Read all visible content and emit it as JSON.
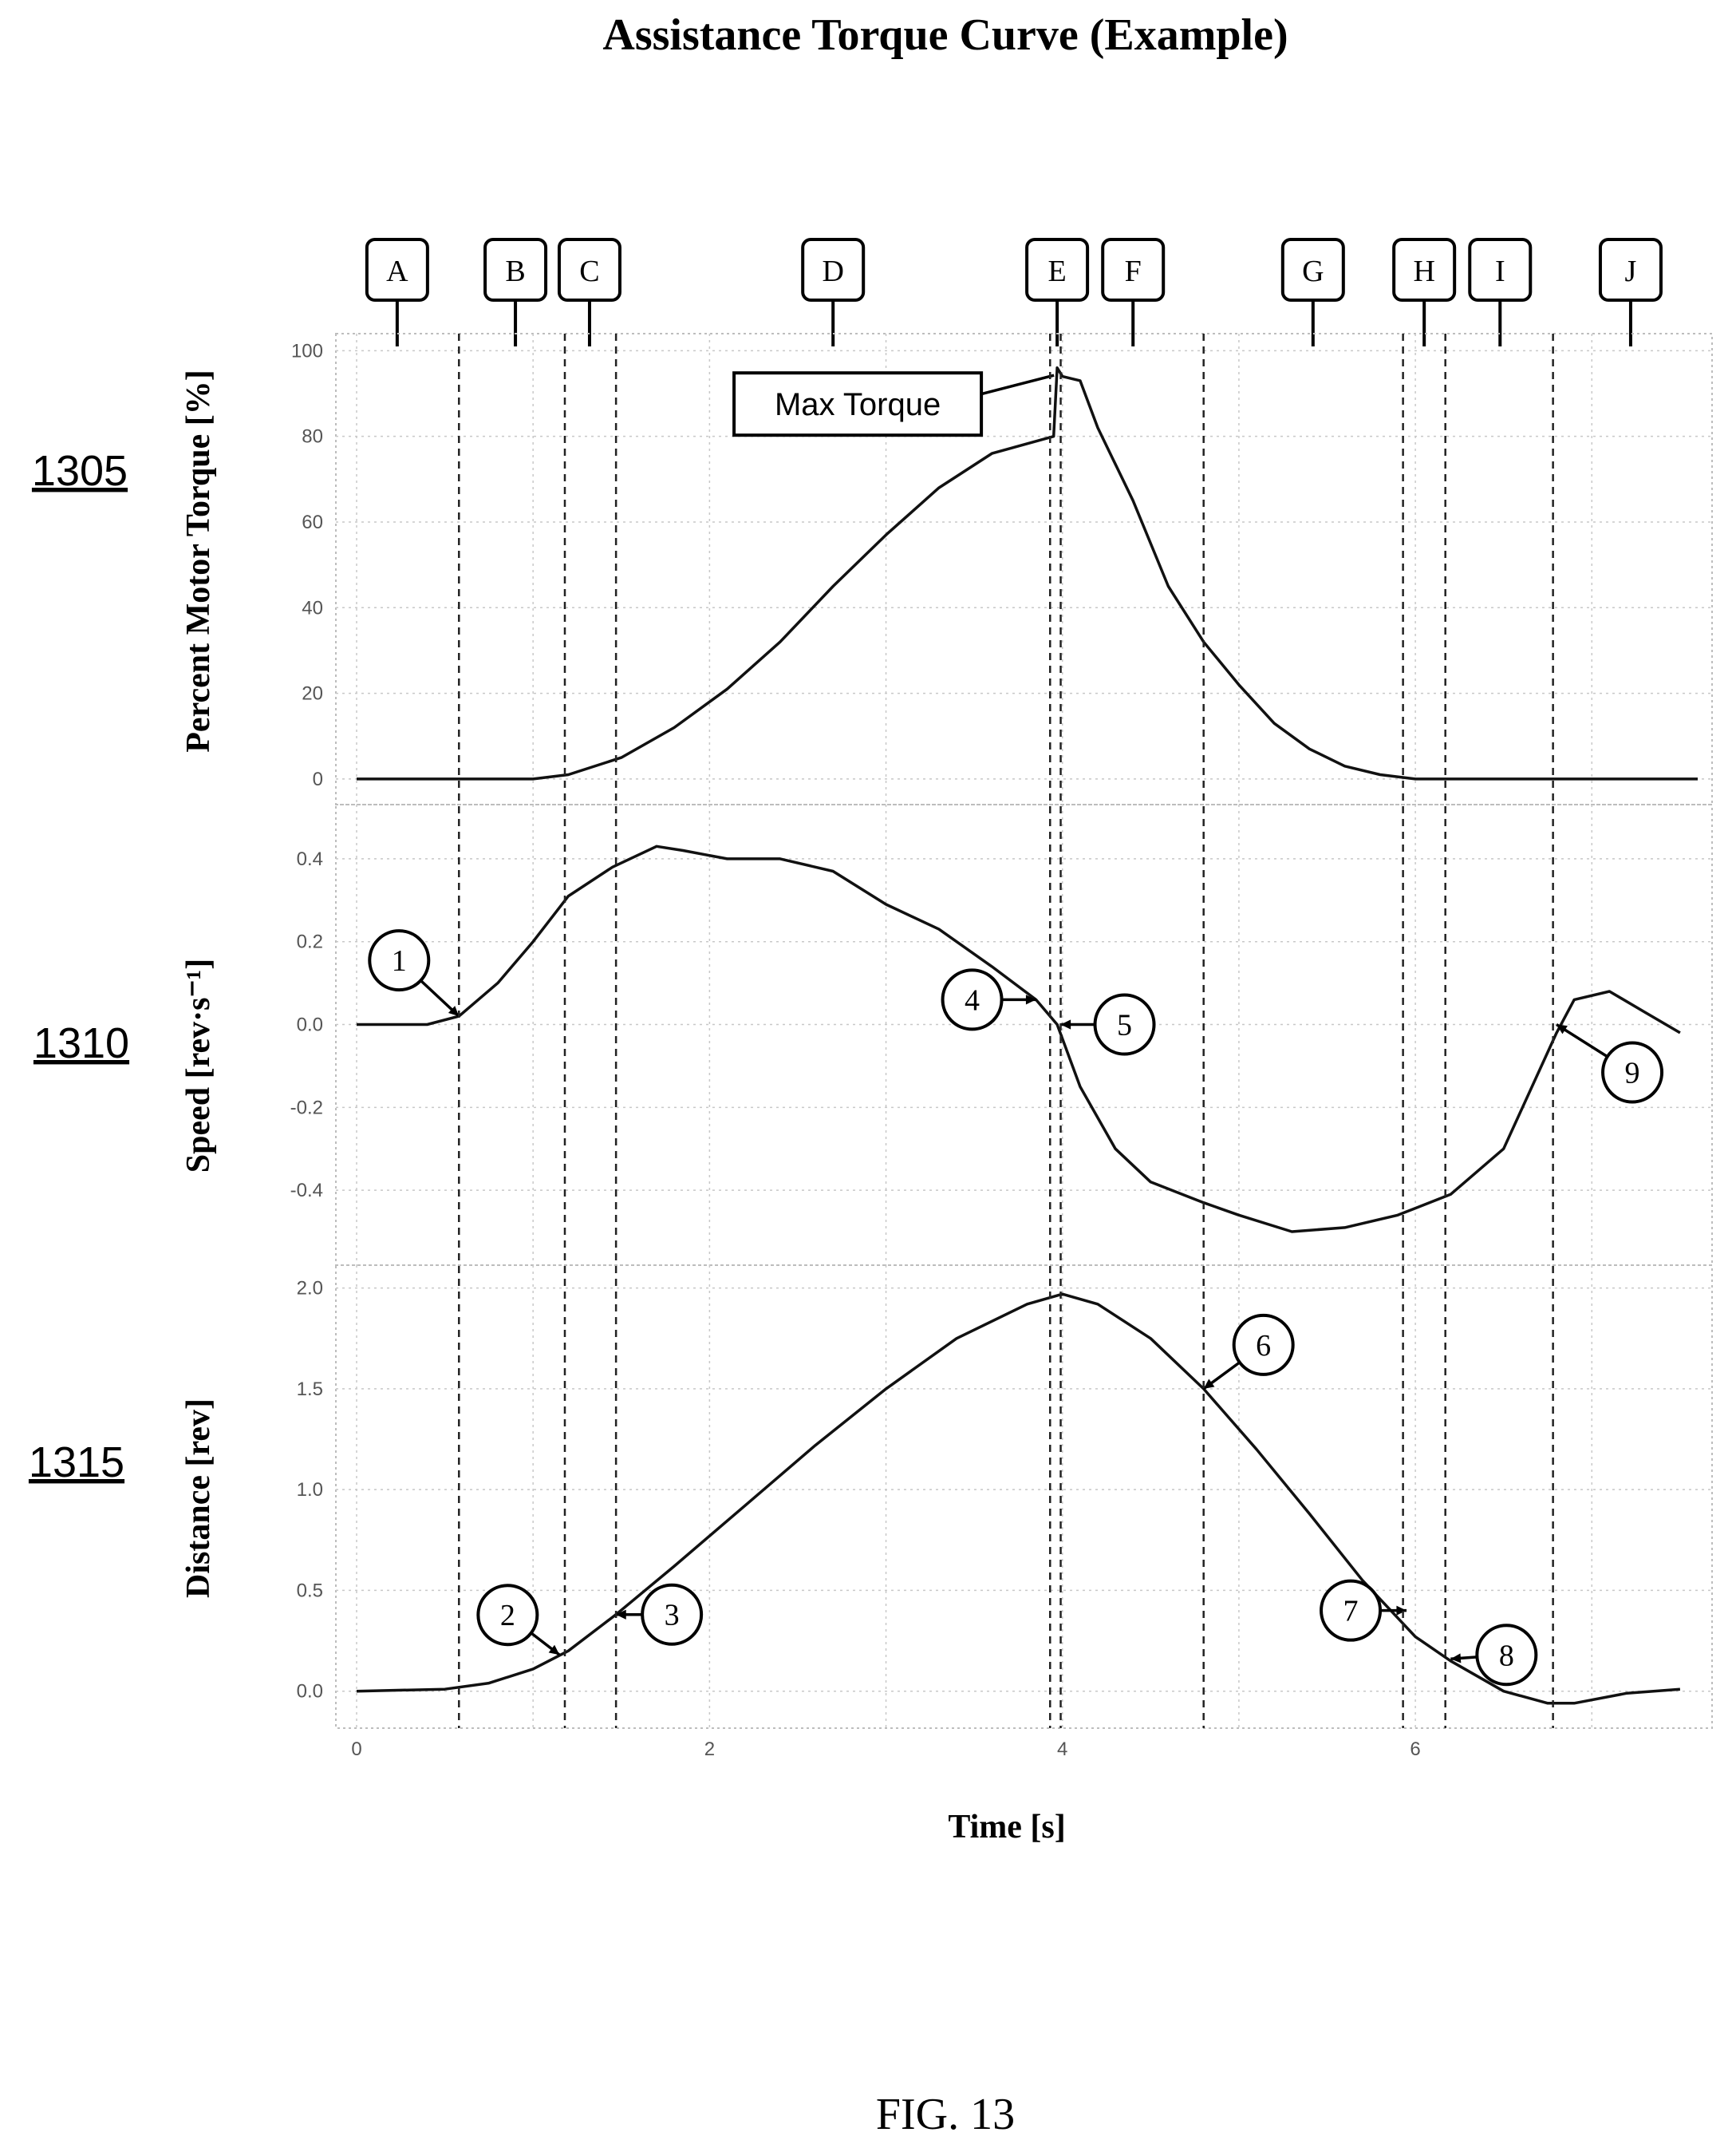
{
  "title": "Assistance Torque Curve (Example)",
  "figure_caption": "FIG. 13",
  "chart_data": [
    {
      "type": "line",
      "ref": "1305",
      "ylabel": "Percent Motor Torque [%]",
      "xlabel": "",
      "xlim": [
        0,
        7.6
      ],
      "ylim": [
        -3,
        101
      ],
      "yticks": [
        0,
        20,
        40,
        60,
        80,
        100
      ],
      "ytick_labels": [
        "0",
        "20",
        "40",
        "60",
        "80",
        "100"
      ],
      "grid": true,
      "x": [
        0,
        0.5,
        1.0,
        1.2,
        1.5,
        1.8,
        2.1,
        2.4,
        2.7,
        3.0,
        3.3,
        3.6,
        3.95,
        3.97,
        4.0,
        4.1,
        4.2,
        4.4,
        4.6,
        4.8,
        5.0,
        5.2,
        5.4,
        5.6,
        5.8,
        6.0,
        6.1,
        6.2,
        7.6
      ],
      "series": [
        {
          "name": "",
          "values": [
            0,
            0,
            0,
            1,
            5,
            12,
            21,
            32,
            45,
            57,
            68,
            76,
            80,
            96,
            94,
            93,
            82,
            65,
            45,
            32,
            22,
            13,
            7,
            3,
            1,
            0,
            0,
            0,
            0
          ]
        }
      ],
      "annotations": [
        {
          "text": "Max Torque",
          "x": 3.97,
          "y": 95
        }
      ]
    },
    {
      "type": "line",
      "ref": "1310",
      "ylabel": "Speed [rev·s⁻¹]",
      "xlabel": "",
      "xlim": [
        0,
        7.6
      ],
      "ylim": [
        -0.55,
        0.5
      ],
      "yticks": [
        -0.4,
        -0.2,
        0.0,
        0.2,
        0.4
      ],
      "ytick_labels": [
        "-0.4",
        "-0.2",
        "0.0",
        "0.2",
        "0.4"
      ],
      "grid": true,
      "x": [
        0,
        0.4,
        0.58,
        0.8,
        1.0,
        1.2,
        1.45,
        1.7,
        1.85,
        2.1,
        2.4,
        2.7,
        3.0,
        3.3,
        3.6,
        3.85,
        3.97,
        4.1,
        4.3,
        4.5,
        4.8,
        5.0,
        5.3,
        5.6,
        5.9,
        6.2,
        6.5,
        6.8,
        6.9,
        7.1,
        7.3,
        7.5
      ],
      "series": [
        {
          "name": "",
          "values": [
            0.0,
            0.0,
            0.02,
            0.1,
            0.2,
            0.31,
            0.38,
            0.43,
            0.42,
            0.4,
            0.4,
            0.37,
            0.29,
            0.23,
            0.14,
            0.06,
            0.0,
            -0.15,
            -0.3,
            -0.38,
            -0.43,
            -0.46,
            -0.5,
            -0.49,
            -0.46,
            -0.41,
            -0.3,
            -0.02,
            0.06,
            0.08,
            0.03,
            -0.02
          ]
        }
      ],
      "annotations": [
        {
          "text": "1",
          "x": 0.58,
          "y": 0.02
        },
        {
          "text": "4",
          "x": 3.85,
          "y": 0.06
        },
        {
          "text": "5",
          "x": 3.99,
          "y": 0.0
        },
        {
          "text": "9",
          "x": 6.8,
          "y": 0.0
        }
      ]
    },
    {
      "type": "line",
      "ref": "1315",
      "ylabel": "Distance [rev]",
      "xlabel": "Time [s]",
      "xlim": [
        0,
        7.6
      ],
      "ylim": [
        -0.12,
        2.05
      ],
      "yticks": [
        0.0,
        0.5,
        1.0,
        1.5,
        2.0
      ],
      "ytick_labels": [
        "0.0",
        "0.5",
        "1.0",
        "1.5",
        "2.0"
      ],
      "xticks": [
        0,
        2,
        4,
        6
      ],
      "xtick_labels": [
        "0",
        "2",
        "4",
        "6"
      ],
      "grid": true,
      "x": [
        0,
        0.5,
        0.75,
        1.0,
        1.2,
        1.47,
        1.8,
        2.2,
        2.6,
        3.0,
        3.4,
        3.8,
        4.0,
        4.2,
        4.5,
        4.8,
        5.1,
        5.4,
        5.7,
        6.0,
        6.2,
        6.5,
        6.75,
        6.9,
        7.2,
        7.5
      ],
      "series": [
        {
          "name": "",
          "values": [
            0.0,
            0.01,
            0.04,
            0.11,
            0.2,
            0.38,
            0.62,
            0.92,
            1.22,
            1.5,
            1.75,
            1.92,
            1.97,
            1.92,
            1.75,
            1.5,
            1.2,
            0.88,
            0.55,
            0.27,
            0.15,
            0.0,
            -0.06,
            -0.06,
            -0.01,
            0.01
          ]
        }
      ],
      "annotations": [
        {
          "text": "2",
          "x": 1.15,
          "y": 0.18
        },
        {
          "text": "3",
          "x": 1.47,
          "y": 0.38
        },
        {
          "text": "6",
          "x": 4.8,
          "y": 1.5
        },
        {
          "text": "7",
          "x": 5.95,
          "y": 0.4
        },
        {
          "text": "8",
          "x": 6.2,
          "y": 0.16
        }
      ]
    }
  ],
  "phases": {
    "labels": [
      "A",
      "B",
      "C",
      "D",
      "E",
      "F",
      "G",
      "H",
      "I",
      "J"
    ],
    "label_times": [
      0.23,
      0.9,
      1.32,
      2.7,
      3.97,
      4.4,
      5.42,
      6.05,
      6.48,
      7.22
    ],
    "boundaries": [
      0.58,
      1.18,
      1.47,
      3.93,
      3.99,
      4.8,
      5.93,
      6.17,
      6.78
    ]
  }
}
